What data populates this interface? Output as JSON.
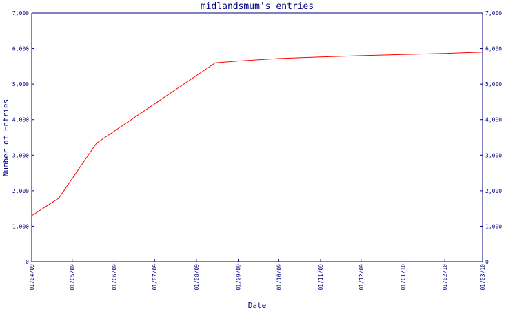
{
  "chart_data": {
    "type": "line",
    "title": "midlandsmum's entries",
    "xlabel": "Date",
    "ylabel": "Number of Entries",
    "ylim": [
      0,
      7000
    ],
    "xlim": [
      "2009-04-01",
      "2010-03-01"
    ],
    "grid": false,
    "y_ticks": [
      {
        "value": 0,
        "label": "0"
      },
      {
        "value": 1000,
        "label": "1,000"
      },
      {
        "value": 2000,
        "label": "2,000"
      },
      {
        "value": 3000,
        "label": "3,000"
      },
      {
        "value": 4000,
        "label": "4,000"
      },
      {
        "value": 5000,
        "label": "5,000"
      },
      {
        "value": 6000,
        "label": "6,000"
      },
      {
        "value": 7000,
        "label": "7,000"
      }
    ],
    "x_ticks": [
      {
        "date": "2009-04-01",
        "label": "01/04/09"
      },
      {
        "date": "2009-05-01",
        "label": "01/05/09"
      },
      {
        "date": "2009-06-01",
        "label": "01/06/09"
      },
      {
        "date": "2009-07-01",
        "label": "01/07/09"
      },
      {
        "date": "2009-08-01",
        "label": "01/08/09"
      },
      {
        "date": "2009-09-01",
        "label": "01/09/09"
      },
      {
        "date": "2009-10-01",
        "label": "01/10/09"
      },
      {
        "date": "2009-11-01",
        "label": "01/11/09"
      },
      {
        "date": "2009-12-01",
        "label": "01/12/09"
      },
      {
        "date": "2010-01-01",
        "label": "01/01/10"
      },
      {
        "date": "2010-02-01",
        "label": "01/02/10"
      },
      {
        "date": "2010-03-01",
        "label": "01/03/10"
      }
    ],
    "series": [
      {
        "color": "#ff0000",
        "points": [
          {
            "x": "2009-04-01",
            "y": 1300
          },
          {
            "x": "2009-04-21",
            "y": 1790
          },
          {
            "x": "2009-05-19",
            "y": 3340
          },
          {
            "x": "2009-08-15",
            "y": 5600
          },
          {
            "x": "2009-09-01",
            "y": 5650
          },
          {
            "x": "2009-10-01",
            "y": 5720
          },
          {
            "x": "2009-11-01",
            "y": 5765
          },
          {
            "x": "2009-12-01",
            "y": 5800
          },
          {
            "x": "2010-01-01",
            "y": 5830
          },
          {
            "x": "2010-02-01",
            "y": 5860
          },
          {
            "x": "2010-03-01",
            "y": 5900
          }
        ]
      }
    ]
  }
}
